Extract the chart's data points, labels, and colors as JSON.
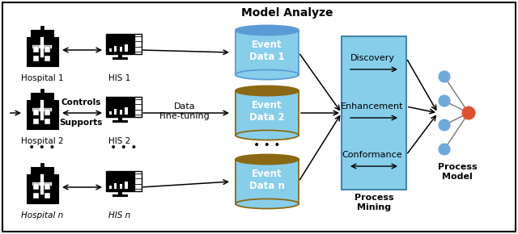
{
  "title": "Model Analyze",
  "bg_color": "#ffffff",
  "border_color": "#000000",
  "hospitals": [
    "Hospital 1",
    "Hospital 2",
    "Hospital n"
  ],
  "his": [
    "HIS 1",
    "HIS 2",
    "HIS n"
  ],
  "cyl_labels": [
    "Event\nData 1",
    "Event\nData 2",
    "Event\nData n"
  ],
  "cyl_top_colors": [
    "#5B9BD5",
    "#8B6914",
    "#8B6914"
  ],
  "cyl_body_colors": [
    "#87CEEB",
    "#87CEEB",
    "#87CEEB"
  ],
  "process_mining_color": "#87CEEB",
  "process_mining_edge": "#4488AA",
  "process_mining_label": "Process\nMining",
  "process_model_label": "Process\nModel",
  "pm_labels": [
    "Discovery",
    "Enhancement",
    "Conformance"
  ],
  "controls_label": "Controls",
  "supports_label": "Supports",
  "data_finetuning_label": "Data\nFine-tuning",
  "node_blue": "#6FA8DC",
  "node_red": "#E05030",
  "arrow_color": "#000000"
}
